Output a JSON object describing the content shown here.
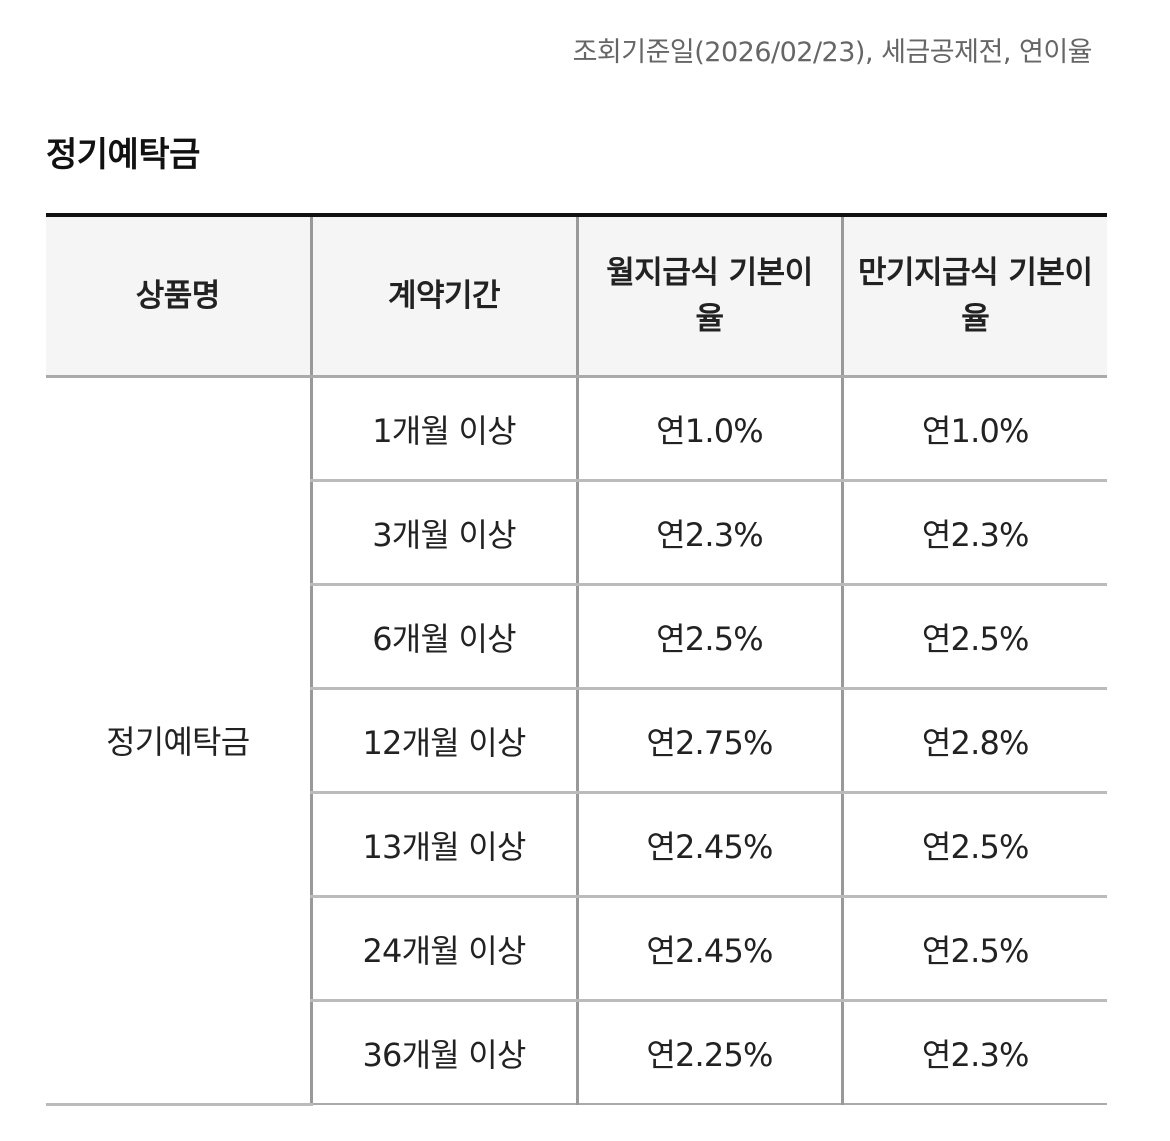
{
  "notice": "조회기준일(2026/02/23), 세금공제전, 연이율",
  "section_title": "정기예탁금",
  "table": {
    "headers": [
      "상품명",
      "계약기간",
      "월지급식 기본이율",
      "만기지급식 기본이율"
    ],
    "product_name": "정기예탁금",
    "rows": [
      {
        "period": "1개월 이상",
        "monthly": "연1.0%",
        "maturity": "연1.0%"
      },
      {
        "period": "3개월 이상",
        "monthly": "연2.3%",
        "maturity": "연2.3%"
      },
      {
        "period": "6개월 이상",
        "monthly": "연2.5%",
        "maturity": "연2.5%"
      },
      {
        "period": "12개월 이상",
        "monthly": "연2.75%",
        "maturity": "연2.8%"
      },
      {
        "period": "13개월 이상",
        "monthly": "연2.45%",
        "maturity": "연2.5%"
      },
      {
        "period": "24개월 이상",
        "monthly": "연2.45%",
        "maturity": "연2.5%"
      },
      {
        "period": "36개월 이상",
        "monthly": "연2.25%",
        "maturity": "연2.3%"
      }
    ]
  }
}
